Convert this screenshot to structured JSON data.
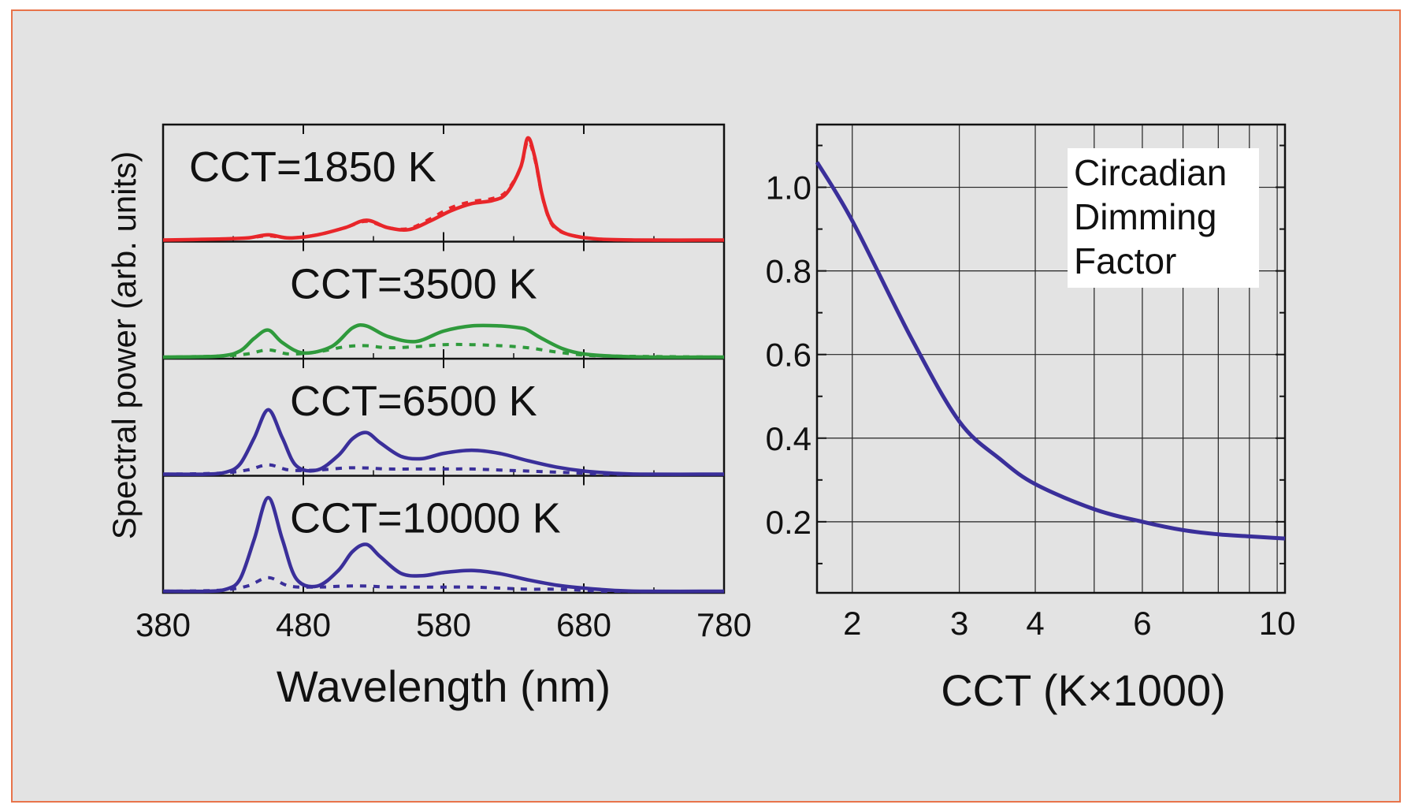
{
  "colors": {
    "background": "#e3e3e3",
    "border": "#e8734a",
    "red": "#e8262a",
    "green": "#2f9a3c",
    "blue": "#3a2f9a"
  },
  "chart_data": [
    {
      "type": "line",
      "title": "",
      "xlabel": "Wavelength (nm)",
      "ylabel": "Spectral power (arb. units)",
      "xlim": [
        380,
        780
      ],
      "xticks": [
        "380",
        "480",
        "580",
        "680",
        "780"
      ],
      "legend": "none",
      "grid": false,
      "panels": [
        {
          "label": "CCT=1850 K",
          "color": "#e8262a",
          "series": [
            {
              "style": "solid",
              "x": [
                380,
                420,
                440,
                455,
                470,
                490,
                510,
                525,
                540,
                555,
                570,
                585,
                600,
                615,
                625,
                635,
                640,
                645,
                650,
                655,
                660,
                670,
                690,
                720,
                780
              ],
              "y": [
                0,
                0.01,
                0.02,
                0.05,
                0.02,
                0.05,
                0.12,
                0.19,
                0.12,
                0.1,
                0.18,
                0.28,
                0.35,
                0.38,
                0.45,
                0.7,
                0.98,
                0.8,
                0.45,
                0.22,
                0.12,
                0.05,
                0.01,
                0,
                0
              ]
            },
            {
              "style": "dotted",
              "x": [
                380,
                420,
                440,
                455,
                470,
                490,
                510,
                525,
                540,
                555,
                570,
                585,
                600,
                615,
                625,
                635,
                640,
                645,
                650,
                655,
                660,
                670,
                690,
                720,
                780
              ],
              "y": [
                0,
                0.01,
                0.02,
                0.04,
                0.02,
                0.05,
                0.12,
                0.18,
                0.12,
                0.11,
                0.2,
                0.31,
                0.37,
                0.4,
                0.47,
                0.7,
                0.95,
                0.78,
                0.44,
                0.21,
                0.11,
                0.05,
                0.01,
                0,
                0
              ]
            }
          ]
        },
        {
          "label": "CCT=3500 K",
          "color": "#2f9a3c",
          "series": [
            {
              "style": "solid",
              "x": [
                380,
                420,
                435,
                445,
                455,
                465,
                480,
                500,
                515,
                525,
                540,
                560,
                580,
                600,
                620,
                635,
                640,
                650,
                665,
                680,
                700,
                730,
                780
              ],
              "y": [
                0,
                0.01,
                0.06,
                0.18,
                0.26,
                0.14,
                0.04,
                0.1,
                0.28,
                0.3,
                0.2,
                0.15,
                0.25,
                0.3,
                0.3,
                0.28,
                0.26,
                0.18,
                0.08,
                0.03,
                0.01,
                0,
                0
              ]
            },
            {
              "style": "dotted",
              "x": [
                380,
                420,
                440,
                455,
                470,
                490,
                510,
                525,
                540,
                560,
                580,
                600,
                620,
                640,
                660,
                680,
                700,
                780
              ],
              "y": [
                0,
                0.01,
                0.03,
                0.07,
                0.03,
                0.05,
                0.1,
                0.11,
                0.09,
                0.1,
                0.12,
                0.12,
                0.11,
                0.09,
                0.05,
                0.02,
                0.01,
                0
              ]
            }
          ]
        },
        {
          "label": "CCT=6500 K",
          "color": "#3a2f9a",
          "series": [
            {
              "style": "solid",
              "x": [
                380,
                410,
                425,
                435,
                445,
                455,
                465,
                475,
                490,
                505,
                515,
                525,
                535,
                550,
                565,
                580,
                600,
                620,
                640,
                660,
                680,
                700,
                720,
                780
              ],
              "y": [
                0,
                0,
                0.02,
                0.1,
                0.35,
                0.62,
                0.35,
                0.08,
                0.04,
                0.18,
                0.34,
                0.4,
                0.3,
                0.17,
                0.15,
                0.2,
                0.23,
                0.2,
                0.13,
                0.07,
                0.03,
                0.01,
                0,
                0
              ]
            },
            {
              "style": "dotted",
              "x": [
                380,
                420,
                440,
                455,
                470,
                490,
                510,
                525,
                540,
                560,
                580,
                600,
                620,
                640,
                660,
                680,
                700,
                780
              ],
              "y": [
                0,
                0.01,
                0.04,
                0.09,
                0.04,
                0.04,
                0.06,
                0.06,
                0.05,
                0.05,
                0.05,
                0.05,
                0.04,
                0.03,
                0.02,
                0.01,
                0,
                0
              ]
            }
          ]
        },
        {
          "label": "CCT=10000 K",
          "color": "#3a2f9a",
          "series": [
            {
              "style": "solid",
              "x": [
                380,
                410,
                425,
                435,
                445,
                455,
                465,
                475,
                490,
                505,
                515,
                525,
                535,
                550,
                565,
                580,
                600,
                620,
                640,
                660,
                680,
                700,
                720,
                780
              ],
              "y": [
                0,
                0,
                0.02,
                0.12,
                0.5,
                0.9,
                0.5,
                0.12,
                0.05,
                0.2,
                0.38,
                0.45,
                0.33,
                0.17,
                0.15,
                0.18,
                0.2,
                0.17,
                0.11,
                0.06,
                0.03,
                0.01,
                0,
                0
              ]
            },
            {
              "style": "dotted",
              "x": [
                380,
                420,
                440,
                455,
                470,
                490,
                510,
                525,
                540,
                560,
                580,
                600,
                620,
                640,
                660,
                680,
                700,
                780
              ],
              "y": [
                0,
                0.01,
                0.05,
                0.13,
                0.05,
                0.04,
                0.05,
                0.05,
                0.04,
                0.04,
                0.04,
                0.04,
                0.03,
                0.02,
                0.02,
                0.01,
                0,
                0
              ]
            }
          ]
        }
      ]
    },
    {
      "type": "line",
      "title": "",
      "xlabel": "CCT (K×1000)",
      "ylabel": "",
      "xscale": "log",
      "xlim": [
        1.75,
        10.3
      ],
      "ylim": [
        0.03,
        1.15
      ],
      "xticks": [
        {
          "value": 2,
          "label": "2"
        },
        {
          "value": 3,
          "label": "3"
        },
        {
          "value": 4,
          "label": "4"
        },
        {
          "value": 6,
          "label": "6"
        },
        {
          "value": 10,
          "label": "10"
        }
      ],
      "xgrid": [
        2,
        3,
        4,
        5,
        6,
        7,
        8,
        9,
        10
      ],
      "yticks": [
        {
          "value": 0.2,
          "label": "0.2"
        },
        {
          "value": 0.4,
          "label": "0.4"
        },
        {
          "value": 0.6,
          "label": "0.6"
        },
        {
          "value": 0.8,
          "label": "0.8"
        },
        {
          "value": 1.0,
          "label": "1.0"
        }
      ],
      "grid": true,
      "annotation": [
        "Circadian",
        "Dimming",
        "Factor"
      ],
      "annotation_position": "top-right",
      "color": "#3a2f9a",
      "series": [
        {
          "x": [
            1.75,
            2.0,
            2.5,
            3.0,
            3.5,
            4.0,
            5.0,
            6.0,
            7.0,
            8.0,
            9.0,
            10.3
          ],
          "y": [
            1.06,
            0.92,
            0.64,
            0.44,
            0.35,
            0.29,
            0.23,
            0.2,
            0.18,
            0.17,
            0.165,
            0.16
          ]
        }
      ]
    }
  ]
}
